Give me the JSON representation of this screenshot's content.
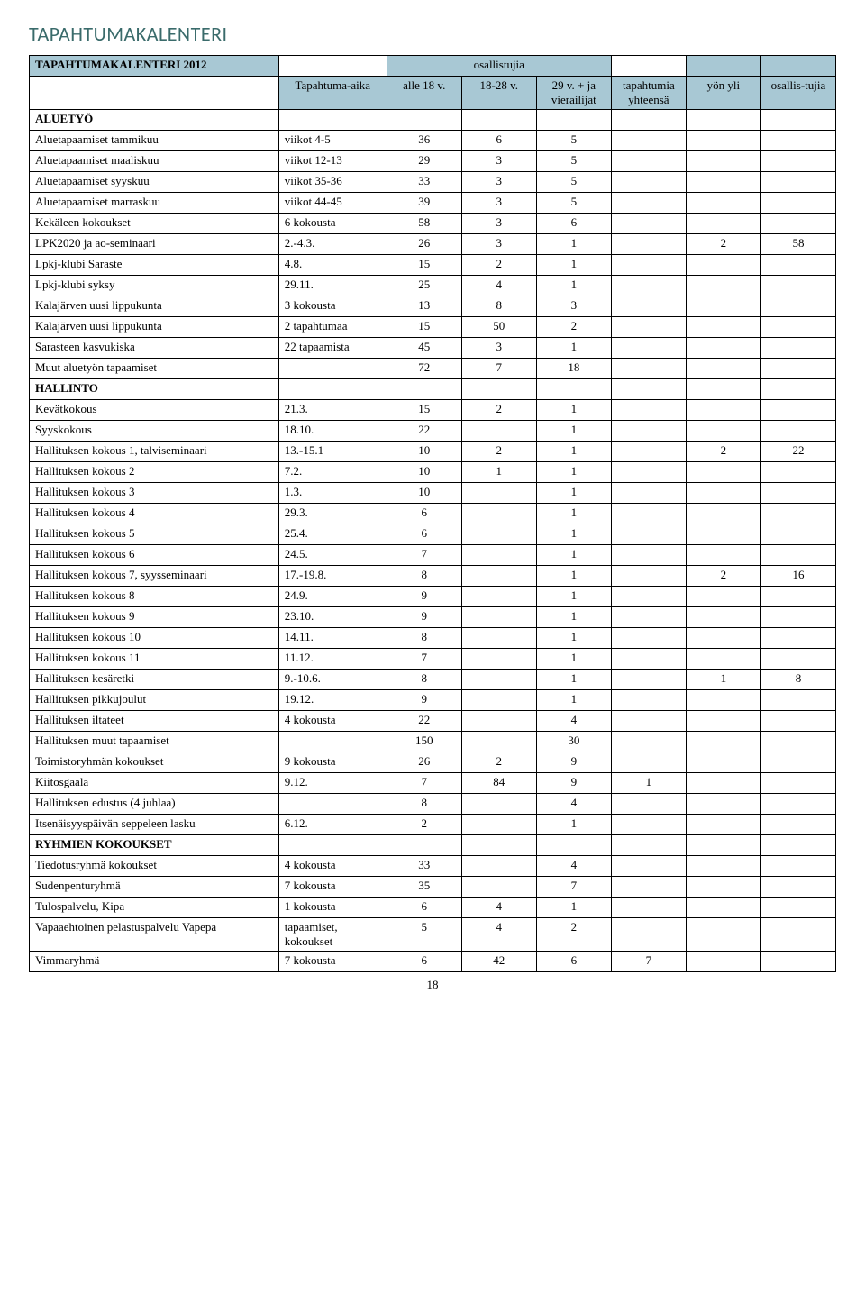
{
  "page_title": "TAPAHTUMAKALENTERI",
  "page_number": "18",
  "header": {
    "main_title": "TAPAHTUMAKALENTERI 2012",
    "osallistujia": "osallistujia",
    "col_time": "Tapahtuma-aika",
    "col_a": "alle 18 v.",
    "col_b": "18-28 v.",
    "col_c": "29 v. + ja vierailijat",
    "col_d": "tapahtumia yhteensä",
    "col_e": "yön yli",
    "col_f": "osallis-tujia"
  },
  "sections": [
    {
      "title": "ALUETYÖ",
      "rows": [
        {
          "label": "Aluetapaamiset tammikuu",
          "time": "viikot 4-5",
          "a": "36",
          "b": "6",
          "c": "5",
          "d": "",
          "e": "",
          "f": ""
        },
        {
          "label": "Aluetapaamiset maaliskuu",
          "time": "viikot 12-13",
          "a": "29",
          "b": "3",
          "c": "5",
          "d": "",
          "e": "",
          "f": ""
        },
        {
          "label": "Aluetapaamiset syyskuu",
          "time": "viikot 35-36",
          "a": "33",
          "b": "3",
          "c": "5",
          "d": "",
          "e": "",
          "f": ""
        },
        {
          "label": "Aluetapaamiset marraskuu",
          "time": "viikot 44-45",
          "a": "39",
          "b": "3",
          "c": "5",
          "d": "",
          "e": "",
          "f": ""
        },
        {
          "label": "Kekäleen kokoukset",
          "time": "6 kokousta",
          "a": "58",
          "b": "3",
          "c": "6",
          "d": "",
          "e": "",
          "f": ""
        },
        {
          "label": "LPK2020 ja ao-seminaari",
          "time": "2.-4.3.",
          "a": "26",
          "b": "3",
          "c": "1",
          "d": "",
          "e": "2",
          "f": "58"
        },
        {
          "label": "Lpkj-klubi Saraste",
          "time": "4.8.",
          "a": "15",
          "b": "2",
          "c": "1",
          "d": "",
          "e": "",
          "f": ""
        },
        {
          "label": "Lpkj-klubi syksy",
          "time": "29.11.",
          "a": "25",
          "b": "4",
          "c": "1",
          "d": "",
          "e": "",
          "f": ""
        },
        {
          "label": "Kalajärven uusi lippukunta",
          "time": "3 kokousta",
          "a": "13",
          "b": "8",
          "c": "3",
          "d": "",
          "e": "",
          "f": ""
        },
        {
          "label": "Kalajärven uusi lippukunta",
          "time": "2 tapahtumaa",
          "a": "15",
          "b": "50",
          "c": "2",
          "d": "",
          "e": "",
          "f": ""
        },
        {
          "label": "Sarasteen kasvukiska",
          "time": "22 tapaamista",
          "a": "45",
          "b": "3",
          "c": "1",
          "d": "",
          "e": "",
          "f": ""
        },
        {
          "label": "Muut aluetyön tapaamiset",
          "time": "",
          "a": "72",
          "b": "7",
          "c": "18",
          "d": "",
          "e": "",
          "f": ""
        }
      ]
    },
    {
      "title": "HALLINTO",
      "rows": [
        {
          "label": "Kevätkokous",
          "time": "21.3.",
          "a": "15",
          "b": "2",
          "c": "1",
          "d": "",
          "e": "",
          "f": ""
        },
        {
          "label": "Syyskokous",
          "time": "18.10.",
          "a": "22",
          "b": "",
          "c": "1",
          "d": "",
          "e": "",
          "f": ""
        },
        {
          "label": "Hallituksen kokous 1, talviseminaari",
          "time": "13.-15.1",
          "a": "10",
          "b": "2",
          "c": "1",
          "d": "",
          "e": "2",
          "f": "22"
        },
        {
          "label": "Hallituksen kokous 2",
          "time": "7.2.",
          "a": "10",
          "b": "1",
          "c": "1",
          "d": "",
          "e": "",
          "f": ""
        },
        {
          "label": "Hallituksen kokous 3",
          "time": "1.3.",
          "a": "10",
          "b": "",
          "c": "1",
          "d": "",
          "e": "",
          "f": ""
        },
        {
          "label": "Hallituksen kokous 4",
          "time": "29.3.",
          "a": "6",
          "b": "",
          "c": "1",
          "d": "",
          "e": "",
          "f": ""
        },
        {
          "label": "Hallituksen kokous 5",
          "time": "25.4.",
          "a": "6",
          "b": "",
          "c": "1",
          "d": "",
          "e": "",
          "f": ""
        },
        {
          "label": "Hallituksen kokous 6",
          "time": "24.5.",
          "a": "7",
          "b": "",
          "c": "1",
          "d": "",
          "e": "",
          "f": ""
        },
        {
          "label": "Hallituksen kokous 7, syysseminaari",
          "time": "17.-19.8.",
          "a": "8",
          "b": "",
          "c": "1",
          "d": "",
          "e": "2",
          "f": "16"
        },
        {
          "label": "Hallituksen kokous 8",
          "time": "24.9.",
          "a": "9",
          "b": "",
          "c": "1",
          "d": "",
          "e": "",
          "f": ""
        },
        {
          "label": "Hallituksen kokous 9",
          "time": "23.10.",
          "a": "9",
          "b": "",
          "c": "1",
          "d": "",
          "e": "",
          "f": ""
        },
        {
          "label": "Hallituksen kokous 10",
          "time": "14.11.",
          "a": "8",
          "b": "",
          "c": "1",
          "d": "",
          "e": "",
          "f": ""
        },
        {
          "label": "Hallituksen kokous 11",
          "time": "11.12.",
          "a": "7",
          "b": "",
          "c": "1",
          "d": "",
          "e": "",
          "f": ""
        },
        {
          "label": "Hallituksen kesäretki",
          "time": "9.-10.6.",
          "a": "8",
          "b": "",
          "c": "1",
          "d": "",
          "e": "1",
          "f": "8"
        },
        {
          "label": "Hallituksen pikkujoulut",
          "time": "19.12.",
          "a": "9",
          "b": "",
          "c": "1",
          "d": "",
          "e": "",
          "f": ""
        },
        {
          "label": "Hallituksen iltateet",
          "time": "4 kokousta",
          "a": "22",
          "b": "",
          "c": "4",
          "d": "",
          "e": "",
          "f": ""
        },
        {
          "label": "Hallituksen muut tapaamiset",
          "time": "",
          "a": "150",
          "b": "",
          "c": "30",
          "d": "",
          "e": "",
          "f": ""
        },
        {
          "label": "Toimistoryhmän kokoukset",
          "time": "9 kokousta",
          "a": "26",
          "b": "2",
          "c": "9",
          "d": "",
          "e": "",
          "f": ""
        },
        {
          "label": "Kiitosgaala",
          "time": "9.12.",
          "a": "7",
          "b": "84",
          "c": "9",
          "d": "1",
          "e": "",
          "f": ""
        },
        {
          "label": "Hallituksen edustus (4 juhlaa)",
          "time": "",
          "a": "8",
          "b": "",
          "c": "4",
          "d": "",
          "e": "",
          "f": ""
        },
        {
          "label": "Itsenäisyyspäivän seppeleen lasku",
          "time": "6.12.",
          "a": "2",
          "b": "",
          "c": "1",
          "d": "",
          "e": "",
          "f": ""
        }
      ]
    },
    {
      "title": "RYHMIEN KOKOUKSET",
      "rows": [
        {
          "label": "Tiedotusryhmä kokoukset",
          "time": "4 kokousta",
          "a": "33",
          "b": "",
          "c": "4",
          "d": "",
          "e": "",
          "f": ""
        },
        {
          "label": "Sudenpenturyhmä",
          "time": "7 kokousta",
          "a": "35",
          "b": "",
          "c": "7",
          "d": "",
          "e": "",
          "f": ""
        },
        {
          "label": "Tulospalvelu, Kipa",
          "time": "1 kokousta",
          "a": "6",
          "b": "4",
          "c": "1",
          "d": "",
          "e": "",
          "f": ""
        },
        {
          "label": "Vapaaehtoinen pelastuspalvelu Vapepa",
          "time": "tapaamiset, kokoukset",
          "a": "5",
          "b": "4",
          "c": "2",
          "d": "",
          "e": "",
          "f": ""
        },
        {
          "label": "Vimmaryhmä",
          "time": "7 kokousta",
          "a": "6",
          "b": "42",
          "c": "6",
          "d": "7",
          "e": "",
          "f": ""
        }
      ]
    }
  ]
}
